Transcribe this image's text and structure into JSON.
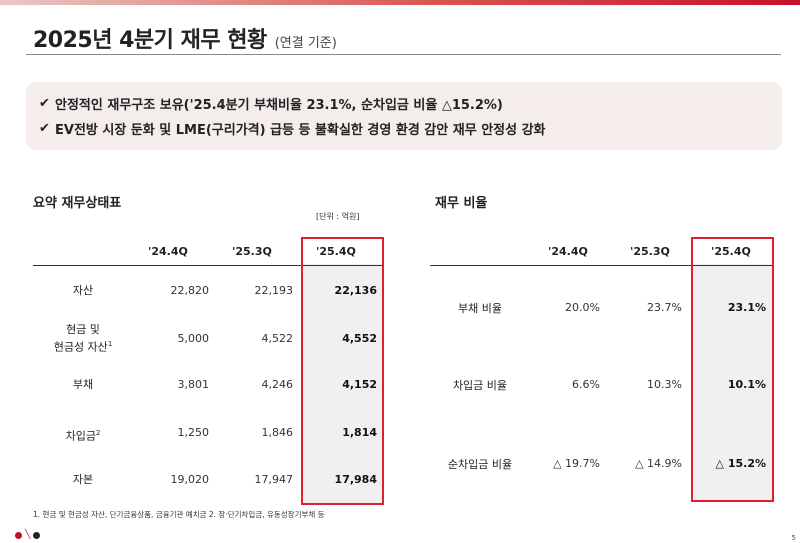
{
  "header": {
    "title": "2025년 4분기 재무 현황",
    "subtitle": "(연결 기준)"
  },
  "summary": {
    "lines": [
      "안정적인 재무구조 보유('25.4분기 부채비율 23.1%, 순차입금 비율 △15.2%)",
      "EV전방 시장 둔화 및 LME(구리가격) 급등 등 불확실한 경영 환경 감안 재무 안정성 강화"
    ]
  },
  "balance_sheet": {
    "title": "요약 재무상태표",
    "unit": "[단위 : 억원]",
    "columns": [
      "'24.4Q",
      "'25.3Q",
      "'25.4Q"
    ],
    "rows": [
      {
        "label": "자산",
        "values": [
          "22,820",
          "22,193",
          "22,136"
        ]
      },
      {
        "label_line1": "현금 및",
        "label_line2": "현금성 자산",
        "sup": "1",
        "values": [
          "5,000",
          "4,522",
          "4,552"
        ]
      },
      {
        "label": "부채",
        "values": [
          "3,801",
          "4,246",
          "4,152"
        ]
      },
      {
        "label": "차입금",
        "sup": "2",
        "values": [
          "1,250",
          "1,846",
          "1,814"
        ]
      },
      {
        "label": "자본",
        "values": [
          "19,020",
          "17,947",
          "17,984"
        ]
      }
    ],
    "footnote": "1. 현금 및 현금성 자산, 단기금융상품, 금융기관 예치금   2. 장·단기차입금, 유동성장기부채 등"
  },
  "ratios": {
    "title": "재무 비율",
    "columns": [
      "'24.4Q",
      "'25.3Q",
      "'25.4Q"
    ],
    "rows": [
      {
        "label": "부채 비율",
        "values": [
          "20.0%",
          "23.7%",
          "23.1%"
        ]
      },
      {
        "label": "차입금 비율",
        "values": [
          "6.6%",
          "10.3%",
          "10.1%"
        ]
      },
      {
        "label": "순차입금 비율",
        "values": [
          "△ 19.7%",
          "△ 14.9%",
          "△ 15.2%"
        ]
      }
    ]
  },
  "page": {
    "number": "5"
  },
  "colors": {
    "accent": "#e0202e",
    "summary_bg": "#f5ecec",
    "highlight_bg": "#f0f0f0"
  }
}
